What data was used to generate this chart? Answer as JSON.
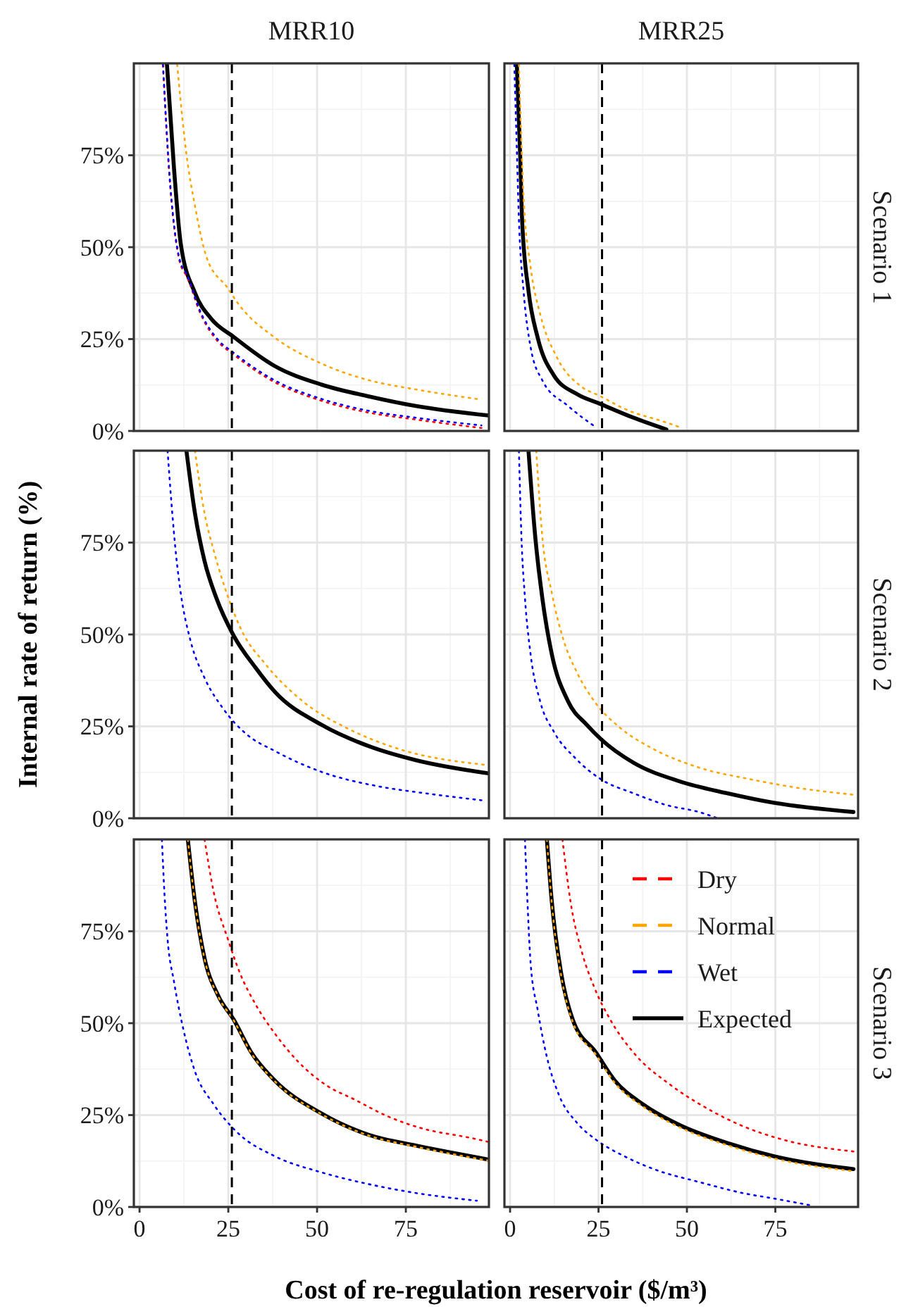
{
  "chart_data": [
    {
      "type": "line",
      "title": "MRR10",
      "xlim": [
        -1.6,
        98.4
      ],
      "ylim": [
        0,
        100
      ],
      "xticks": [
        0,
        25,
        50,
        75
      ],
      "yticks": [
        {
          "value": 0,
          "label": "0%"
        },
        {
          "value": 25,
          "label": "25%"
        },
        {
          "value": 50,
          "label": "50%"
        },
        {
          "value": 75,
          "label": "75%"
        }
      ],
      "grid": true,
      "tick_labels": "y",
      "ref_lines": [
        {
          "axis": "x",
          "value": 26,
          "color": "#000000",
          "line_style": "dashed"
        }
      ],
      "series": [
        {
          "color": "#ff0000",
          "line_style": "dotted",
          "x": [
            6.6,
            8.3,
            11.2,
            13.6,
            16.9,
            22.2,
            26.2,
            38,
            51.3,
            64.5,
            77.8,
            96.3
          ],
          "values": [
            99.5,
            71,
            46.5,
            41.5,
            32.5,
            24.2,
            21,
            13.3,
            8.2,
            5,
            3.1,
            0.8
          ]
        },
        {
          "color": "#ffa500",
          "line_style": "dotted",
          "x": [
            10.6,
            11.6,
            13.2,
            15.6,
            18.9,
            24.9,
            27.5,
            38.1,
            51.3,
            64.6,
            77.8,
            95
          ],
          "values": [
            99.7,
            89.5,
            75.4,
            61.3,
            47.2,
            38.8,
            35,
            25.4,
            18.3,
            13.8,
            11.3,
            8.7
          ]
        },
        {
          "color": "#0000ff",
          "line_style": "dotted",
          "x": [
            6.6,
            8.3,
            11.2,
            13.6,
            16.9,
            22.2,
            26.2,
            38,
            51.3,
            64.5,
            77.8,
            96.3
          ],
          "values": [
            99.7,
            71.5,
            47,
            42,
            33,
            24.7,
            21.5,
            13.8,
            8.7,
            5.5,
            3.6,
            1.5
          ]
        },
        {
          "color": "#000000",
          "line_style": "solid",
          "x": [
            7.7,
            9.7,
            11.6,
            15.6,
            20.2,
            26.5,
            38,
            51.3,
            64.6,
            77.8,
            98.3
          ],
          "values": [
            100,
            71.5,
            51,
            37.6,
            30.5,
            25.6,
            17.7,
            12.6,
            9.4,
            6.8,
            4.2
          ]
        }
      ]
    },
    {
      "type": "line",
      "title": "MRR25",
      "y2label": "Scenario 1",
      "xlim": [
        -1.6,
        98.4
      ],
      "ylim": [
        0,
        100
      ],
      "xticks": [
        0,
        25,
        50,
        75
      ],
      "yticks": [
        0,
        25,
        50,
        75
      ],
      "grid": true,
      "tick_labels": false,
      "ref_lines": [
        {
          "axis": "x",
          "value": 26,
          "color": "#000000",
          "line_style": "dashed"
        }
      ],
      "series": [
        {
          "color": "#ffa500",
          "line_style": "dotted",
          "x": [
            2.5,
            3.8,
            5.8,
            8.5,
            13.1,
            20.4,
            25,
            33.6,
            42.9,
            48.1
          ],
          "values": [
            99.7,
            63.8,
            44.6,
            31.8,
            20.3,
            11.9,
            9.7,
            5.5,
            2.7,
            1
          ]
        },
        {
          "color": "#0000ff",
          "line_style": "dotted",
          "x": [
            1.2,
            1.9,
            2.5,
            3.8,
            5.8,
            9.1,
            16.4,
            24.3
          ],
          "values": [
            99.7,
            76.7,
            57.4,
            38.2,
            22.8,
            13.8,
            6.8,
            1
          ]
        },
        {
          "color": "#000000",
          "line_style": "solid",
          "x": [
            1.9,
            2.9,
            3.4,
            5.2,
            7.8,
            12.4,
            19,
            25.4,
            34.9,
            44.2
          ],
          "values": [
            100,
            73.6,
            57.4,
            38.2,
            25.4,
            15.1,
            10,
            7.4,
            3.6,
            0.4
          ]
        }
      ]
    },
    {
      "type": "line",
      "ylabel": "Internal rate of return (%)",
      "xlim": [
        -1.6,
        98.4
      ],
      "ylim": [
        0,
        100
      ],
      "xticks": [
        0,
        25,
        50,
        75
      ],
      "yticks": [
        {
          "value": 0,
          "label": "0%"
        },
        {
          "value": 25,
          "label": "25%"
        },
        {
          "value": 50,
          "label": "50%"
        },
        {
          "value": 75,
          "label": "75%"
        }
      ],
      "grid": true,
      "tick_labels": "y",
      "ref_lines": [
        {
          "axis": "x",
          "value": 26,
          "color": "#000000",
          "line_style": "dashed"
        }
      ],
      "series": [
        {
          "color": "#ffa500",
          "line_style": "dotted",
          "x": [
            15.6,
            18.3,
            20.9,
            25.5,
            28.8,
            35.4,
            46,
            59.3,
            72.5,
            97.6
          ],
          "values": [
            100,
            83,
            72.8,
            58.7,
            51,
            42,
            31.8,
            24.1,
            19,
            14.5
          ]
        },
        {
          "color": "#0000ff",
          "line_style": "dotted",
          "x": [
            7.9,
            9,
            10.3,
            11.6,
            14.3,
            18.3,
            23.5,
            30.2,
            38.1,
            51.3,
            67.2,
            80.4,
            96.3
          ],
          "values": [
            100,
            85.6,
            71.5,
            61.3,
            48.5,
            38.2,
            29.9,
            22.8,
            18.3,
            12.6,
            8.7,
            6.8,
            4.9
          ]
        },
        {
          "color": "#000000",
          "line_style": "solid",
          "x": [
            13.2,
            15.6,
            18.3,
            21.6,
            26.5,
            32.8,
            38.1,
            51.3,
            64.6,
            77.8,
            98.3
          ],
          "values": [
            100,
            83,
            70,
            60,
            49.7,
            40.8,
            34.4,
            25.4,
            19.6,
            15.8,
            12.2
          ]
        }
      ]
    },
    {
      "type": "line",
      "y2label": "Scenario 2",
      "xlim": [
        -1.6,
        98.4
      ],
      "ylim": [
        0,
        100
      ],
      "xticks": [
        0,
        25,
        50,
        75
      ],
      "yticks": [
        0,
        25,
        50,
        75
      ],
      "grid": true,
      "tick_labels": false,
      "ref_lines": [
        {
          "axis": "x",
          "value": 26,
          "color": "#000000",
          "line_style": "dashed"
        }
      ],
      "series": [
        {
          "color": "#ffa500",
          "line_style": "dotted",
          "x": [
            7.4,
            9.1,
            11.8,
            15.1,
            19,
            24.3,
            31,
            40.2,
            53.4,
            68,
            82.5,
            97.1
          ],
          "values": [
            100,
            76.7,
            61.3,
            48.5,
            39.5,
            31.2,
            24.7,
            19,
            13.8,
            10.6,
            8.1,
            6.4
          ]
        },
        {
          "color": "#0000ff",
          "line_style": "dotted",
          "x": [
            2.5,
            3.2,
            4.2,
            5.8,
            8.5,
            12.4,
            18.4,
            25.7,
            34.9,
            44.2,
            53.4,
            58.7
          ],
          "values": [
            100,
            76.7,
            60,
            44.6,
            31.8,
            23.5,
            16.4,
            10.6,
            6.8,
            3.6,
            1.7,
            0
          ]
        },
        {
          "color": "#000000",
          "line_style": "solid",
          "x": [
            5.2,
            7.1,
            9.1,
            11.8,
            16.4,
            21.7,
            25.7,
            34.9,
            48.1,
            61.4,
            74.6,
            97.1
          ],
          "values": [
            100,
            76.7,
            60,
            44.6,
            31.8,
            25.4,
            21.5,
            15.1,
            10,
            6.8,
            4.2,
            1.7
          ]
        }
      ]
    },
    {
      "type": "line",
      "xlabel": "Cost of re-regulation reservoir ($/m³)",
      "xlim": [
        -1.6,
        98.4
      ],
      "ylim": [
        0,
        100
      ],
      "xticks": [
        0,
        25,
        50,
        75
      ],
      "yticks": [
        {
          "value": 0,
          "label": "0%"
        },
        {
          "value": 25,
          "label": "25%"
        },
        {
          "value": 50,
          "label": "50%"
        },
        {
          "value": 75,
          "label": "75%"
        }
      ],
      "grid": true,
      "ref_lines": [
        {
          "axis": "x",
          "value": 26,
          "color": "#000000",
          "line_style": "dashed"
        }
      ],
      "series": [
        {
          "color": "#ff0000",
          "line_style": "dotted",
          "x": [
            18.3,
            20.9,
            24.9,
            28.2,
            32.8,
            38.1,
            44.7,
            52.6,
            60.6,
            69.8,
            79.1,
            93.7,
            98.3
          ],
          "values": [
            100,
            85.6,
            72.8,
            63.8,
            54.9,
            47.2,
            39.5,
            33.1,
            29.2,
            24.7,
            21.5,
            18.7,
            17.7
          ]
        },
        {
          "color": "#000000",
          "line_style": "solid",
          "x": [
            13.6,
            15.6,
            18.3,
            22.2,
            26.5,
            31.5,
            38.1,
            51.3,
            64.6,
            77.8,
            98.3
          ],
          "values": [
            100,
            83,
            67.7,
            57.4,
            51,
            42,
            34.4,
            25.4,
            19.6,
            16.7,
            12.9
          ]
        },
        {
          "color": "#ffa500",
          "line_style": "dotted",
          "x": [
            13.6,
            15.6,
            18.3,
            22.2,
            26.5,
            31.5,
            38.1,
            51.3,
            64.6,
            77.8,
            98.3
          ],
          "values": [
            100,
            82.8,
            67.5,
            57.2,
            50.8,
            41.8,
            34.2,
            25.2,
            19.4,
            16.4,
            12.6
          ]
        },
        {
          "color": "#0000ff",
          "line_style": "dotted",
          "x": [
            6.3,
            7,
            7.9,
            9.7,
            12.3,
            15.6,
            20.9,
            27.5,
            38.1,
            51.3,
            64.6,
            77.8,
            95
          ],
          "values": [
            100,
            85.6,
            72.8,
            61.3,
            48.5,
            36.9,
            27.9,
            20.3,
            13.8,
            9.4,
            6.2,
            3.8,
            1.7
          ]
        }
      ]
    },
    {
      "type": "line",
      "y2label": "Scenario 3",
      "legend": "top right",
      "xlim": [
        -1.6,
        98.4
      ],
      "ylim": [
        0,
        100
      ],
      "xticks": [
        0,
        25,
        50,
        75
      ],
      "yticks": [
        0,
        25,
        50,
        75
      ],
      "grid": true,
      "tick_labels": "x",
      "ref_lines": [
        {
          "axis": "x",
          "value": 26,
          "color": "#000000",
          "line_style": "dashed"
        }
      ],
      "series": [
        {
          "name": "Dry",
          "color": "#ff0000",
          "line_style": "dotted",
          "x": [
            14.8,
            17.1,
            20.4,
            23.7,
            28.3,
            34.9,
            45.5,
            54.8,
            65.3,
            77.2,
            97.1
          ],
          "values": [
            100,
            83,
            69,
            60,
            51,
            42,
            33.1,
            27.3,
            22.2,
            18.3,
            15.1
          ]
        },
        {
          "name": "Normal",
          "color": "#ffa500",
          "line_style": "dotted",
          "x": [
            10.4,
            11.8,
            14.4,
            17.7,
            24.3,
            29.6,
            37.6,
            48.1,
            61.4,
            74.6,
            97.1
          ],
          "values": [
            100,
            82.6,
            63.2,
            50.4,
            41.4,
            33.8,
            27.3,
            21.6,
            16.8,
            13.2,
            9.7
          ]
        },
        {
          "name": "Wet",
          "color": "#0000ff",
          "line_style": "dotted",
          "x": [
            4.2,
            4.8,
            5.8,
            7.8,
            10.4,
            13.8,
            19,
            24.3,
            32.3,
            41.5,
            53.4,
            66.7,
            74.6,
            85.2
          ],
          "values": [
            100,
            85.6,
            66.4,
            53.6,
            40.8,
            30.5,
            22.8,
            18.3,
            13.8,
            10,
            6.8,
            3.6,
            2.3,
            0.4
          ]
        },
        {
          "name": "Expected",
          "color": "#000000",
          "line_style": "solid",
          "x": [
            10.4,
            11.8,
            14.4,
            17.7,
            24.3,
            29.6,
            37.6,
            48.1,
            61.4,
            74.6,
            97.1
          ],
          "values": [
            100,
            83,
            63.8,
            51,
            42,
            34.4,
            27.9,
            22.2,
            17.4,
            13.8,
            10.3
          ]
        }
      ]
    }
  ]
}
